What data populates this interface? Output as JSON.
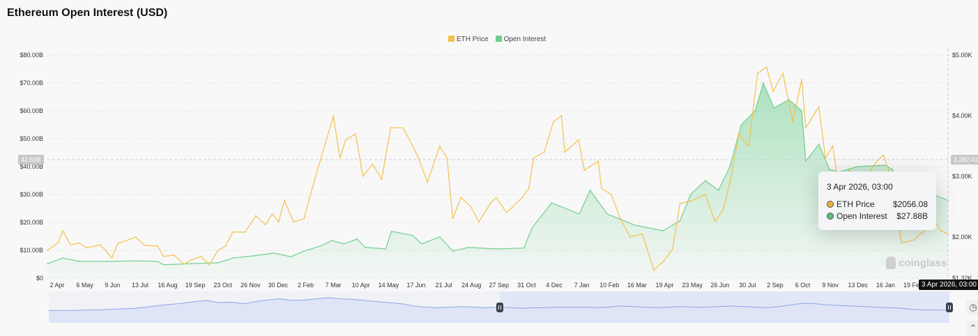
{
  "title": "Ethereum Open Interest (USD)",
  "legend": [
    {
      "name": "ETH Price",
      "color": "#f5c04a"
    },
    {
      "name": "Open Interest",
      "color": "#6fcf8f"
    }
  ],
  "crosshair": {
    "left_label": "42.60B",
    "right_label": "3,282.41",
    "date_label": "3 Apr 2026, 03:00"
  },
  "tooltip": {
    "date": "3 Apr 2026, 03:00",
    "rows": [
      {
        "label": "ETH Price",
        "value": "$2056.08",
        "color": "#e8b23a"
      },
      {
        "label": "Open Interest",
        "value": "$27.88B",
        "color": "#5cbf7a"
      }
    ]
  },
  "watermark": "coinglass",
  "chart_data": {
    "type": "line",
    "title": "Ethereum Open Interest (USD)",
    "x_range": [
      "2023-03-28",
      "2026-04-03"
    ],
    "x_ticks": [
      "2 Apr",
      "6 May",
      "9 Jun",
      "13 Jul",
      "16 Aug",
      "19 Sep",
      "23 Oct",
      "26 Nov",
      "30 Dec",
      "2 Feb",
      "7 Mar",
      "10 Apr",
      "14 May",
      "17 Jun",
      "21 Jul",
      "24 Aug",
      "27 Sep",
      "31 Oct",
      "4 Dec",
      "7 Jan",
      "10 Feb",
      "16 Mar",
      "19 Apr",
      "23 May",
      "26 Jun",
      "30 Jul",
      "2 Sep",
      "6 Oct",
      "9 Nov",
      "13 Dec",
      "16 Jan",
      "19 Feb"
    ],
    "y_left": {
      "ticks": [
        "$0",
        "$10.00B",
        "$20.00B",
        "$30.00B",
        "$40.00B",
        "$50.00B",
        "$60.00B",
        "$70.00B",
        "$80.00B"
      ],
      "range": [
        0,
        80
      ],
      "unit": "B USD"
    },
    "y_right": {
      "ticks": [
        "$1.32K",
        "$2.00K",
        "$3.00K",
        "$4.00K",
        "$5.00K"
      ],
      "range": [
        1320,
        5000
      ],
      "unit": "USD"
    },
    "grid": true,
    "legend_position": "top-center",
    "series": [
      {
        "name": "ETH Price",
        "axis": "right",
        "type": "line",
        "color": "#f5c04a",
        "points": [
          [
            "2023-03-28",
            1780
          ],
          [
            "2023-04-10",
            1900
          ],
          [
            "2023-04-16",
            2100
          ],
          [
            "2023-04-25",
            1870
          ],
          [
            "2023-05-06",
            1900
          ],
          [
            "2023-05-15",
            1820
          ],
          [
            "2023-06-01",
            1870
          ],
          [
            "2023-06-15",
            1650
          ],
          [
            "2023-06-22",
            1890
          ],
          [
            "2023-07-05",
            1950
          ],
          [
            "2023-07-14",
            2000
          ],
          [
            "2023-07-25",
            1860
          ],
          [
            "2023-08-10",
            1850
          ],
          [
            "2023-08-17",
            1680
          ],
          [
            "2023-08-30",
            1700
          ],
          [
            "2023-09-11",
            1550
          ],
          [
            "2023-09-20",
            1620
          ],
          [
            "2023-10-02",
            1680
          ],
          [
            "2023-10-12",
            1540
          ],
          [
            "2023-10-23",
            1780
          ],
          [
            "2023-11-01",
            1850
          ],
          [
            "2023-11-10",
            2080
          ],
          [
            "2023-11-25",
            2080
          ],
          [
            "2023-12-08",
            2350
          ],
          [
            "2023-12-20",
            2200
          ],
          [
            "2023-12-28",
            2380
          ],
          [
            "2024-01-05",
            2250
          ],
          [
            "2024-01-12",
            2600
          ],
          [
            "2024-01-23",
            2250
          ],
          [
            "2024-02-05",
            2300
          ],
          [
            "2024-02-15",
            2800
          ],
          [
            "2024-02-28",
            3400
          ],
          [
            "2024-03-12",
            4000
          ],
          [
            "2024-03-20",
            3300
          ],
          [
            "2024-03-27",
            3600
          ],
          [
            "2024-04-08",
            3700
          ],
          [
            "2024-04-17",
            3000
          ],
          [
            "2024-04-29",
            3200
          ],
          [
            "2024-05-10",
            2950
          ],
          [
            "2024-05-21",
            3800
          ],
          [
            "2024-06-05",
            3800
          ],
          [
            "2024-06-17",
            3500
          ],
          [
            "2024-06-24",
            3300
          ],
          [
            "2024-07-05",
            2900
          ],
          [
            "2024-07-20",
            3500
          ],
          [
            "2024-07-29",
            3300
          ],
          [
            "2024-08-05",
            2300
          ],
          [
            "2024-08-15",
            2650
          ],
          [
            "2024-08-27",
            2500
          ],
          [
            "2024-09-06",
            2250
          ],
          [
            "2024-09-20",
            2550
          ],
          [
            "2024-09-27",
            2650
          ],
          [
            "2024-10-10",
            2400
          ],
          [
            "2024-10-29",
            2650
          ],
          [
            "2024-11-06",
            2800
          ],
          [
            "2024-11-12",
            3300
          ],
          [
            "2024-11-25",
            3400
          ],
          [
            "2024-12-06",
            3900
          ],
          [
            "2024-12-16",
            4000
          ],
          [
            "2024-12-20",
            3400
          ],
          [
            "2025-01-06",
            3600
          ],
          [
            "2025-01-13",
            3100
          ],
          [
            "2025-01-30",
            3250
          ],
          [
            "2025-02-03",
            2800
          ],
          [
            "2025-02-15",
            2700
          ],
          [
            "2025-02-26",
            2300
          ],
          [
            "2025-03-10",
            2000
          ],
          [
            "2025-03-25",
            2050
          ],
          [
            "2025-04-08",
            1450
          ],
          [
            "2025-04-20",
            1600
          ],
          [
            "2025-05-01",
            1800
          ],
          [
            "2025-05-10",
            2550
          ],
          [
            "2025-05-25",
            2600
          ],
          [
            "2025-06-10",
            2700
          ],
          [
            "2025-06-22",
            2250
          ],
          [
            "2025-07-02",
            2450
          ],
          [
            "2025-07-11",
            2950
          ],
          [
            "2025-07-21",
            3700
          ],
          [
            "2025-08-02",
            3500
          ],
          [
            "2025-08-13",
            4700
          ],
          [
            "2025-08-24",
            4800
          ],
          [
            "2025-09-01",
            4400
          ],
          [
            "2025-09-13",
            4700
          ],
          [
            "2025-09-25",
            3900
          ],
          [
            "2025-10-06",
            4600
          ],
          [
            "2025-10-11",
            3800
          ],
          [
            "2025-10-27",
            4150
          ],
          [
            "2025-11-04",
            3300
          ],
          [
            "2025-11-13",
            3500
          ],
          [
            "2025-11-21",
            2750
          ],
          [
            "2025-12-03",
            3100
          ],
          [
            "2025-12-18",
            2900
          ],
          [
            "2026-01-06",
            3250
          ],
          [
            "2026-01-14",
            3350
          ],
          [
            "2026-01-25",
            2900
          ],
          [
            "2026-02-05",
            1900
          ],
          [
            "2026-02-20",
            1950
          ],
          [
            "2026-03-05",
            2100
          ],
          [
            "2026-03-16",
            2300
          ],
          [
            "2026-03-25",
            2100
          ],
          [
            "2026-04-03",
            2056.08
          ]
        ]
      },
      {
        "name": "Open Interest",
        "axis": "left",
        "type": "area",
        "color": "#6fcf8f",
        "points": [
          [
            "2023-03-28",
            5.2
          ],
          [
            "2023-04-16",
            7.2
          ],
          [
            "2023-05-06",
            6.0
          ],
          [
            "2023-06-10",
            6.0
          ],
          [
            "2023-07-13",
            6.2
          ],
          [
            "2023-08-10",
            6.0
          ],
          [
            "2023-08-17",
            4.8
          ],
          [
            "2023-09-20",
            5.2
          ],
          [
            "2023-10-23",
            5.5
          ],
          [
            "2023-11-10",
            7.2
          ],
          [
            "2023-12-05",
            8.0
          ],
          [
            "2023-12-30",
            9.0
          ],
          [
            "2024-01-20",
            7.7
          ],
          [
            "2024-02-05",
            9.7
          ],
          [
            "2024-02-25",
            11.5
          ],
          [
            "2024-03-10",
            13.5
          ],
          [
            "2024-03-25",
            12.3
          ],
          [
            "2024-04-10",
            14.0
          ],
          [
            "2024-04-20",
            11.0
          ],
          [
            "2024-05-15",
            10.5
          ],
          [
            "2024-05-22",
            16.8
          ],
          [
            "2024-06-17",
            15.3
          ],
          [
            "2024-06-28",
            12.3
          ],
          [
            "2024-07-20",
            14.8
          ],
          [
            "2024-08-05",
            9.7
          ],
          [
            "2024-08-24",
            11.0
          ],
          [
            "2024-09-27",
            10.5
          ],
          [
            "2024-10-31",
            10.8
          ],
          [
            "2024-11-10",
            18.0
          ],
          [
            "2024-12-04",
            27.0
          ],
          [
            "2025-01-07",
            23.0
          ],
          [
            "2025-01-20",
            31.5
          ],
          [
            "2025-02-10",
            23.0
          ],
          [
            "2025-03-16",
            19.0
          ],
          [
            "2025-04-19",
            17.0
          ],
          [
            "2025-05-10",
            20.5
          ],
          [
            "2025-05-23",
            30.0
          ],
          [
            "2025-06-10",
            35.0
          ],
          [
            "2025-06-26",
            31.5
          ],
          [
            "2025-07-10",
            40.0
          ],
          [
            "2025-07-24",
            55.0
          ],
          [
            "2025-08-10",
            60.0
          ],
          [
            "2025-08-20",
            70.0
          ],
          [
            "2025-09-02",
            61.0
          ],
          [
            "2025-09-20",
            64.0
          ],
          [
            "2025-10-06",
            60.0
          ],
          [
            "2025-10-11",
            42.0
          ],
          [
            "2025-10-27",
            48.0
          ],
          [
            "2025-11-09",
            39.0
          ],
          [
            "2025-11-20",
            38.0
          ],
          [
            "2025-12-13",
            40.0
          ],
          [
            "2026-01-16",
            40.5
          ],
          [
            "2026-01-25",
            39.0
          ],
          [
            "2026-02-06",
            30.0
          ],
          [
            "2026-03-01",
            29.0
          ],
          [
            "2026-03-20",
            29.5
          ],
          [
            "2026-04-03",
            27.88
          ]
        ]
      }
    ],
    "navigator": {
      "values": [
        12,
        12,
        12,
        13,
        13,
        14,
        15,
        16,
        18,
        21,
        23,
        25,
        28,
        30,
        26,
        27,
        24,
        28,
        31,
        33,
        30,
        31,
        33,
        35,
        33,
        32,
        30,
        28,
        26,
        24,
        20,
        18,
        17,
        18,
        19,
        18,
        17,
        18,
        17,
        16,
        17,
        17,
        18,
        18,
        18,
        17,
        18,
        20,
        19,
        18,
        17,
        18,
        19,
        18,
        18,
        19,
        20,
        19,
        18,
        17,
        19,
        22,
        25,
        24,
        22,
        21,
        20,
        19,
        18,
        17,
        16,
        14,
        13,
        13,
        12
      ],
      "selected_range": [
        "2023-03-28",
        "2026-04-03"
      ],
      "color": "#8fa3e8"
    }
  }
}
